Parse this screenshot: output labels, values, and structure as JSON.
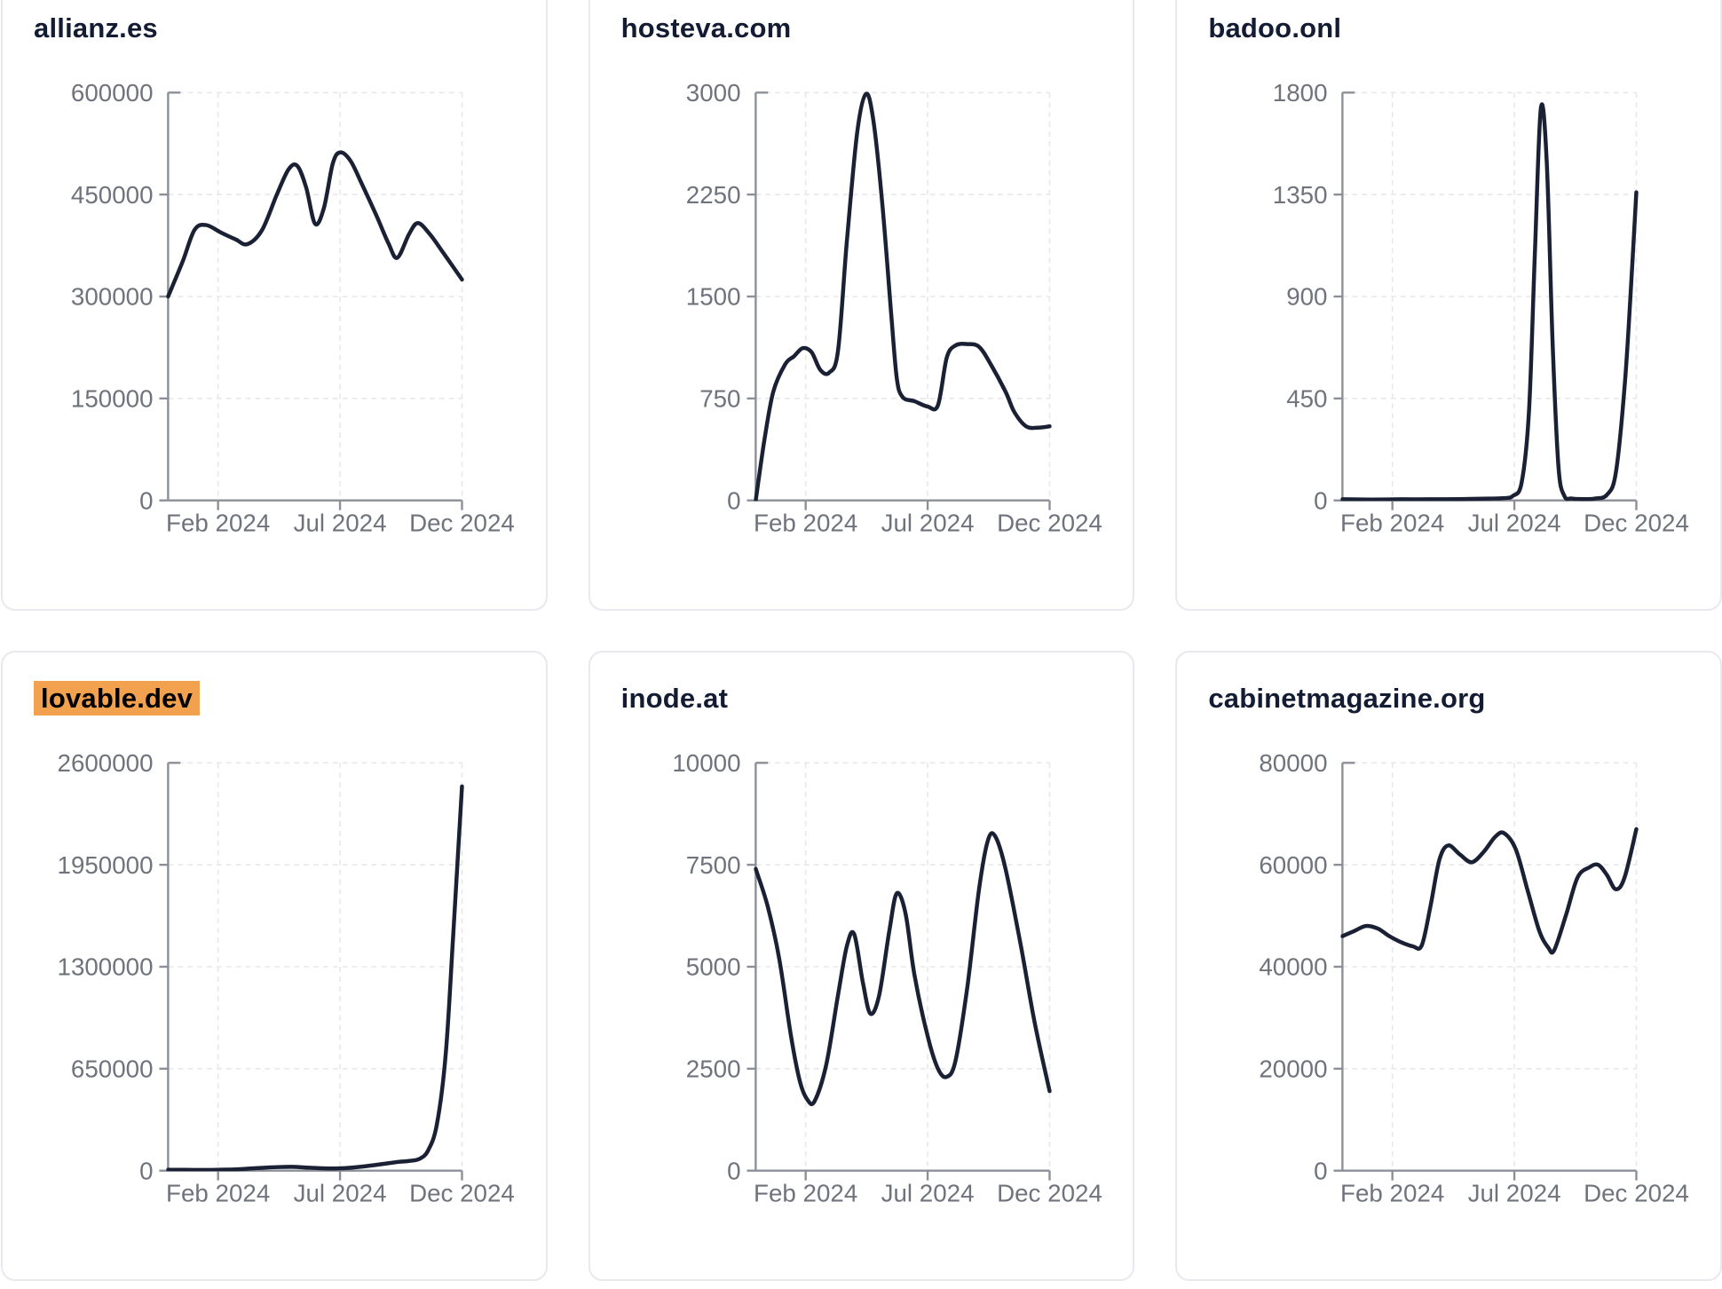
{
  "style": {
    "line_color": "#1b2134",
    "title_color": "#131c33",
    "tick_label_color": "#6f737c",
    "axis_color": "#8b8f97",
    "grid_color": "#e8e8ec",
    "card_border_color": "#e7e9ee",
    "card_background": "#ffffff",
    "page_background": "#ffffff",
    "highlight_color": "#f2a14e",
    "highlight_text_color": "#000000"
  },
  "x_axis": {
    "tick_labels": [
      "Feb 2024",
      "Jul 2024",
      "Dec 2024"
    ],
    "tick_positions": [
      0.17,
      0.585,
      1.0
    ]
  },
  "chart_data": [
    {
      "type": "line",
      "title": "allianz.es",
      "title_highlighted": false,
      "xlabel": "",
      "ylabel": "",
      "x_range": [
        "Jan 2024",
        "Dec 2024"
      ],
      "ylim": [
        0,
        600000
      ],
      "yticks": [
        600000,
        450000,
        300000,
        150000,
        0
      ],
      "xtick_labels": [
        "Feb 2024",
        "Jul 2024",
        "Dec 2024"
      ],
      "grid": "dashed",
      "points": [
        [
          0,
          300000
        ],
        [
          0.05,
          352000
        ],
        [
          0.09,
          398000
        ],
        [
          0.13,
          405000
        ],
        [
          0.18,
          394000
        ],
        [
          0.23,
          384000
        ],
        [
          0.27,
          377000
        ],
        [
          0.32,
          398000
        ],
        [
          0.37,
          450000
        ],
        [
          0.41,
          487000
        ],
        [
          0.44,
          492000
        ],
        [
          0.47,
          460000
        ],
        [
          0.5,
          407000
        ],
        [
          0.53,
          430000
        ],
        [
          0.56,
          495000
        ],
        [
          0.585,
          512000
        ],
        [
          0.62,
          500000
        ],
        [
          0.66,
          465000
        ],
        [
          0.71,
          418000
        ],
        [
          0.75,
          378000
        ],
        [
          0.78,
          357000
        ],
        [
          0.82,
          392000
        ],
        [
          0.85,
          408000
        ],
        [
          0.89,
          392000
        ],
        [
          0.94,
          362000
        ],
        [
          1,
          325000
        ]
      ]
    },
    {
      "type": "line",
      "title": "hosteva.com",
      "title_highlighted": false,
      "xlabel": "",
      "ylabel": "",
      "x_range": [
        "Jan 2024",
        "Dec 2024"
      ],
      "ylim": [
        0,
        3000
      ],
      "yticks": [
        3000,
        2250,
        1500,
        750,
        0
      ],
      "xtick_labels": [
        "Feb 2024",
        "Jul 2024",
        "Dec 2024"
      ],
      "grid": "dashed",
      "points": [
        [
          0,
          0
        ],
        [
          0.03,
          450
        ],
        [
          0.06,
          800
        ],
        [
          0.1,
          1000
        ],
        [
          0.13,
          1060
        ],
        [
          0.16,
          1120
        ],
        [
          0.19,
          1090
        ],
        [
          0.22,
          960
        ],
        [
          0.25,
          940
        ],
        [
          0.28,
          1100
        ],
        [
          0.31,
          1900
        ],
        [
          0.345,
          2700
        ],
        [
          0.375,
          2990
        ],
        [
          0.4,
          2800
        ],
        [
          0.43,
          2200
        ],
        [
          0.46,
          1400
        ],
        [
          0.48,
          900
        ],
        [
          0.5,
          760
        ],
        [
          0.54,
          730
        ],
        [
          0.585,
          690
        ],
        [
          0.62,
          700
        ],
        [
          0.65,
          1050
        ],
        [
          0.68,
          1140
        ],
        [
          0.72,
          1150
        ],
        [
          0.76,
          1130
        ],
        [
          0.8,
          1000
        ],
        [
          0.85,
          800
        ],
        [
          0.88,
          650
        ],
        [
          0.92,
          545
        ],
        [
          0.96,
          535
        ],
        [
          1,
          545
        ]
      ]
    },
    {
      "type": "line",
      "title": "badoo.onl",
      "title_highlighted": false,
      "xlabel": "",
      "ylabel": "",
      "x_range": [
        "Jan 2024",
        "Dec 2024"
      ],
      "ylim": [
        0,
        1800
      ],
      "yticks": [
        1800,
        1350,
        900,
        450,
        0
      ],
      "xtick_labels": [
        "Feb 2024",
        "Jul 2024",
        "Dec 2024"
      ],
      "grid": "dashed",
      "points": [
        [
          0,
          5
        ],
        [
          0.1,
          4
        ],
        [
          0.2,
          5
        ],
        [
          0.3,
          5
        ],
        [
          0.4,
          6
        ],
        [
          0.5,
          8
        ],
        [
          0.55,
          10
        ],
        [
          0.58,
          20
        ],
        [
          0.61,
          80
        ],
        [
          0.635,
          400
        ],
        [
          0.655,
          1100
        ],
        [
          0.675,
          1730
        ],
        [
          0.695,
          1500
        ],
        [
          0.715,
          700
        ],
        [
          0.735,
          150
        ],
        [
          0.755,
          20
        ],
        [
          0.78,
          8
        ],
        [
          0.82,
          6
        ],
        [
          0.86,
          8
        ],
        [
          0.9,
          25
        ],
        [
          0.93,
          120
        ],
        [
          0.96,
          500
        ],
        [
          0.98,
          900
        ],
        [
          1,
          1360
        ]
      ]
    },
    {
      "type": "line",
      "title": "lovable.dev",
      "title_highlighted": true,
      "xlabel": "",
      "ylabel": "",
      "x_range": [
        "Jan 2024",
        "Dec 2024"
      ],
      "ylim": [
        0,
        2600000
      ],
      "yticks": [
        2600000,
        1950000,
        1300000,
        650000,
        0
      ],
      "xtick_labels": [
        "Feb 2024",
        "Jul 2024",
        "Dec 2024"
      ],
      "grid": "dashed",
      "points": [
        [
          0,
          6000
        ],
        [
          0.06,
          5000
        ],
        [
          0.12,
          4500
        ],
        [
          0.18,
          6000
        ],
        [
          0.24,
          9000
        ],
        [
          0.3,
          16000
        ],
        [
          0.36,
          22000
        ],
        [
          0.42,
          24000
        ],
        [
          0.48,
          19000
        ],
        [
          0.54,
          14000
        ],
        [
          0.6,
          16000
        ],
        [
          0.66,
          26000
        ],
        [
          0.72,
          40000
        ],
        [
          0.78,
          55000
        ],
        [
          0.82,
          62000
        ],
        [
          0.855,
          75000
        ],
        [
          0.885,
          130000
        ],
        [
          0.915,
          300000
        ],
        [
          0.945,
          750000
        ],
        [
          0.97,
          1500000
        ],
        [
          1,
          2450000
        ]
      ]
    },
    {
      "type": "line",
      "title": "inode.at",
      "title_highlighted": false,
      "xlabel": "",
      "ylabel": "",
      "x_range": [
        "Jan 2024",
        "Dec 2024"
      ],
      "ylim": [
        0,
        10000
      ],
      "yticks": [
        10000,
        7500,
        5000,
        2500,
        0
      ],
      "xtick_labels": [
        "Feb 2024",
        "Jul 2024",
        "Dec 2024"
      ],
      "grid": "dashed",
      "points": [
        [
          0,
          7400
        ],
        [
          0.04,
          6500
        ],
        [
          0.08,
          5200
        ],
        [
          0.12,
          3300
        ],
        [
          0.15,
          2200
        ],
        [
          0.175,
          1750
        ],
        [
          0.2,
          1700
        ],
        [
          0.24,
          2600
        ],
        [
          0.28,
          4300
        ],
        [
          0.31,
          5500
        ],
        [
          0.335,
          5800
        ],
        [
          0.365,
          4600
        ],
        [
          0.39,
          3850
        ],
        [
          0.42,
          4300
        ],
        [
          0.455,
          5900
        ],
        [
          0.48,
          6800
        ],
        [
          0.51,
          6300
        ],
        [
          0.54,
          4800
        ],
        [
          0.585,
          3300
        ],
        [
          0.62,
          2500
        ],
        [
          0.65,
          2300
        ],
        [
          0.68,
          2700
        ],
        [
          0.72,
          4500
        ],
        [
          0.76,
          6900
        ],
        [
          0.79,
          8100
        ],
        [
          0.815,
          8200
        ],
        [
          0.85,
          7400
        ],
        [
          0.9,
          5600
        ],
        [
          0.95,
          3600
        ],
        [
          1,
          1950
        ]
      ]
    },
    {
      "type": "line",
      "title": "cabinetmagazine.org",
      "title_highlighted": false,
      "xlabel": "",
      "ylabel": "",
      "x_range": [
        "Jan 2024",
        "Dec 2024"
      ],
      "ylim": [
        0,
        80000
      ],
      "yticks": [
        80000,
        60000,
        40000,
        20000,
        0
      ],
      "xtick_labels": [
        "Feb 2024",
        "Jul 2024",
        "Dec 2024"
      ],
      "grid": "dashed",
      "points": [
        [
          0,
          46000
        ],
        [
          0.04,
          47000
        ],
        [
          0.08,
          48000
        ],
        [
          0.12,
          47500
        ],
        [
          0.16,
          46000
        ],
        [
          0.2,
          44800
        ],
        [
          0.24,
          44000
        ],
        [
          0.27,
          44200
        ],
        [
          0.3,
          52000
        ],
        [
          0.33,
          61000
        ],
        [
          0.36,
          63800
        ],
        [
          0.4,
          62000
        ],
        [
          0.44,
          60500
        ],
        [
          0.48,
          62500
        ],
        [
          0.52,
          65500
        ],
        [
          0.55,
          66200
        ],
        [
          0.59,
          63000
        ],
        [
          0.63,
          55000
        ],
        [
          0.67,
          47000
        ],
        [
          0.7,
          43800
        ],
        [
          0.72,
          43200
        ],
        [
          0.76,
          50000
        ],
        [
          0.8,
          57500
        ],
        [
          0.84,
          59500
        ],
        [
          0.87,
          60000
        ],
        [
          0.9,
          58000
        ],
        [
          0.93,
          55200
        ],
        [
          0.96,
          57500
        ],
        [
          1,
          67000
        ]
      ]
    }
  ]
}
